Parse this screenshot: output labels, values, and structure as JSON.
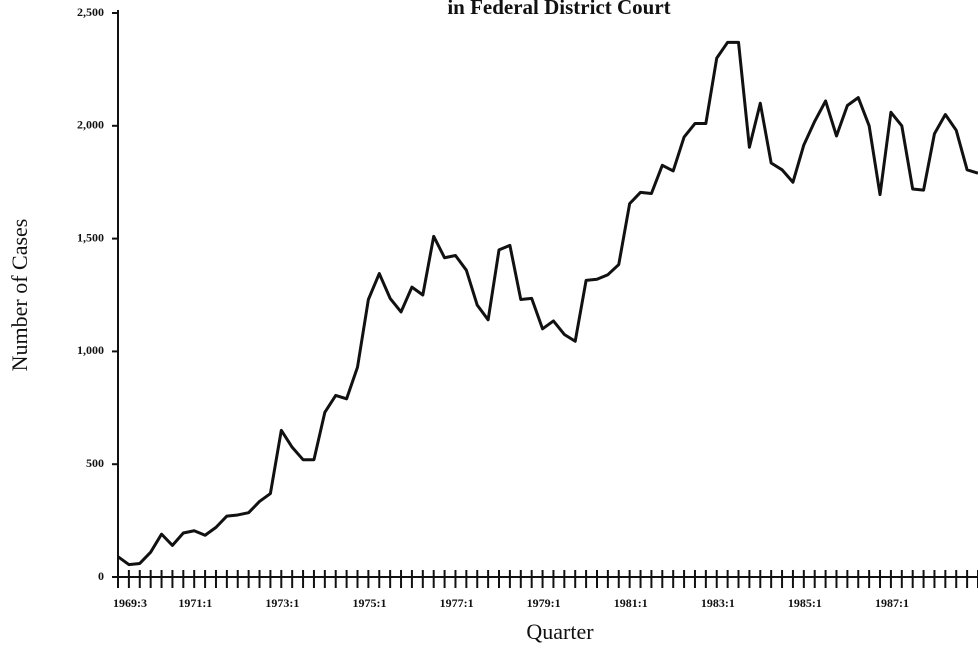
{
  "chart_data": {
    "type": "line",
    "title": "in Federal District Court",
    "xlabel": "Quarter",
    "ylabel": "Number of Cases",
    "categories": [
      "1969:3",
      null,
      null,
      null,
      null,
      null,
      "1971:1",
      null,
      null,
      null,
      null,
      null,
      null,
      null,
      "1973:1",
      null,
      null,
      null,
      null,
      null,
      null,
      null,
      "1975:1",
      null,
      null,
      null,
      null,
      null,
      null,
      null,
      "1977:1",
      null,
      null,
      null,
      null,
      null,
      null,
      null,
      "1979:1",
      null,
      null,
      null,
      null,
      null,
      null,
      null,
      "1981:1",
      null,
      null,
      null,
      null,
      null,
      null,
      null,
      "1983:1",
      null,
      null,
      null,
      null,
      null,
      null,
      null,
      "1985:1",
      null,
      null,
      null,
      null,
      null,
      null,
      null,
      "1987:1",
      null,
      null,
      null,
      null,
      null,
      null,
      null,
      null,
      null
    ],
    "series": [
      {
        "name": "Number of Cases",
        "color": "#111111",
        "values": [
          90,
          55,
          60,
          110,
          190,
          140,
          195,
          205,
          185,
          220,
          270,
          275,
          285,
          335,
          370,
          650,
          575,
          520,
          520,
          730,
          805,
          790,
          930,
          1230,
          1345,
          1235,
          1175,
          1285,
          1250,
          1510,
          1415,
          1425,
          1360,
          1205,
          1140,
          1450,
          1470,
          1230,
          1235,
          1100,
          1135,
          1075,
          1045,
          1315,
          1320,
          1340,
          1385,
          1655,
          1705,
          1700,
          1825,
          1800,
          1950,
          2010,
          2010,
          2300,
          2370,
          2370,
          1905,
          2100,
          1835,
          1805,
          1750,
          1915,
          2020,
          2110,
          1955,
          2090,
          2125,
          2000,
          1695,
          2060,
          2000,
          1720,
          1715,
          1965,
          2050,
          1980,
          1805,
          1790
        ]
      }
    ],
    "ylim": [
      0,
      2500
    ],
    "yticks": [
      0,
      500,
      {
        "value": 1000,
        "label": "1,000"
      },
      {
        "value": 1500,
        "label": "1,500"
      },
      {
        "value": 2000,
        "label": "2,000"
      },
      {
        "value": 2500,
        "label": "2,500"
      }
    ]
  }
}
